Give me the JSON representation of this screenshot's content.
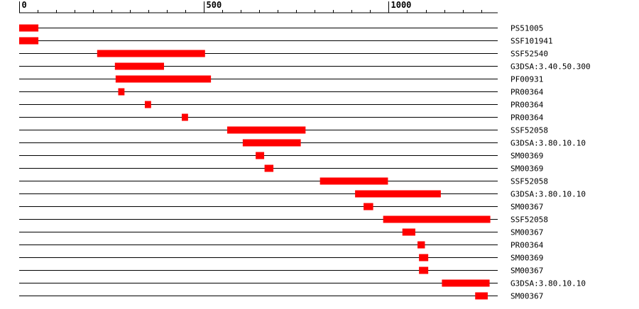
{
  "chart_data": {
    "type": "bar",
    "subtype": "domain-track",
    "xlim": [
      0,
      1295
    ],
    "axis_ticks": [
      {
        "value": 0,
        "label": "0"
      },
      {
        "value": 500,
        "label": "500"
      },
      {
        "value": 1000,
        "label": "1000"
      }
    ],
    "minor_tick_step": 50,
    "bar_color": "#ff0000",
    "rows": [
      {
        "label": "PS51005",
        "start": 0,
        "end": 52
      },
      {
        "label": "SSF101941",
        "start": 0,
        "end": 52
      },
      {
        "label": "SSF52540",
        "start": 211,
        "end": 503
      },
      {
        "label": "G3DSA:3.40.50.300",
        "start": 259,
        "end": 392
      },
      {
        "label": "PF00931",
        "start": 261,
        "end": 519
      },
      {
        "label": "PR00364",
        "start": 268,
        "end": 285
      },
      {
        "label": "PR00364",
        "start": 340,
        "end": 357
      },
      {
        "label": "PR00364",
        "start": 440,
        "end": 457
      },
      {
        "label": "SSF52058",
        "start": 563,
        "end": 775
      },
      {
        "label": "G3DSA:3.80.10.10",
        "start": 605,
        "end": 762
      },
      {
        "label": "SM00369",
        "start": 640,
        "end": 663
      },
      {
        "label": "SM00369",
        "start": 664,
        "end": 688
      },
      {
        "label": "SSF52058",
        "start": 814,
        "end": 998
      },
      {
        "label": "G3DSA:3.80.10.10",
        "start": 909,
        "end": 1141
      },
      {
        "label": "SM00367",
        "start": 932,
        "end": 958
      },
      {
        "label": "SSF52058",
        "start": 985,
        "end": 1275
      },
      {
        "label": "SM00367",
        "start": 1037,
        "end": 1072
      },
      {
        "label": "PR00364",
        "start": 1078,
        "end": 1098
      },
      {
        "label": "SM00369",
        "start": 1082,
        "end": 1107
      },
      {
        "label": "SM00367",
        "start": 1082,
        "end": 1107
      },
      {
        "label": "G3DSA:3.80.10.10",
        "start": 1144,
        "end": 1273
      },
      {
        "label": "SM00367",
        "start": 1234,
        "end": 1268
      }
    ]
  }
}
